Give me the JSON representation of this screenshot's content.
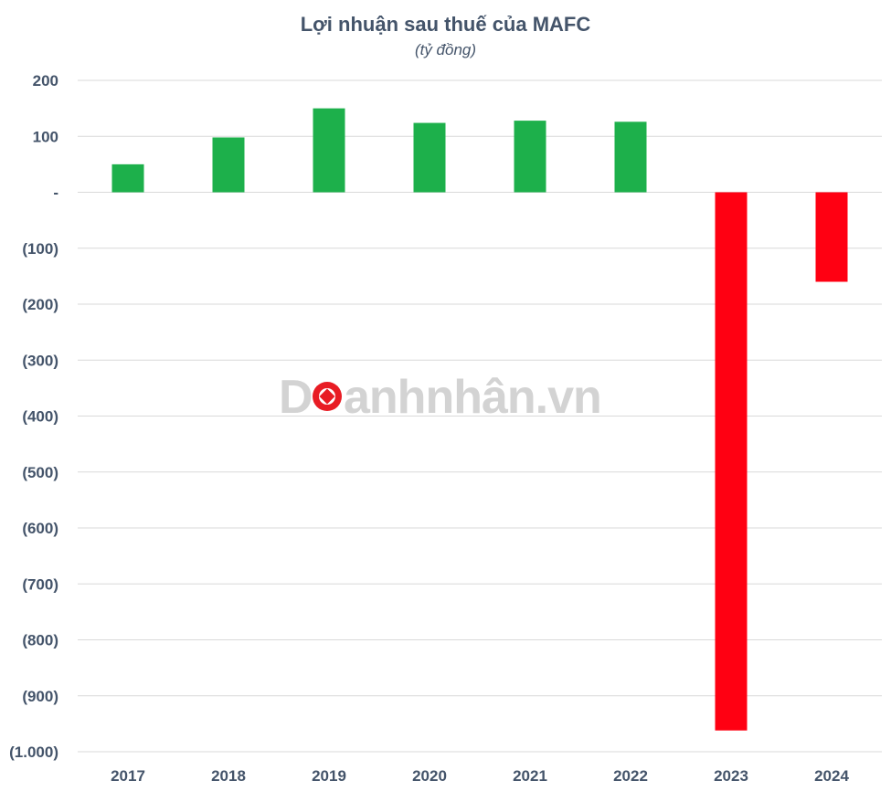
{
  "chart_data": {
    "type": "bar",
    "title": "Lợi nhuận sau thuế của MAFC",
    "subtitle": "(tỷ đồng)",
    "categories": [
      "2017",
      "2018",
      "2019",
      "2020",
      "2021",
      "2022",
      "2023",
      "2024"
    ],
    "values": [
      50,
      98,
      150,
      124,
      128,
      126,
      -962,
      -160
    ],
    "ylim": [
      -1000,
      200
    ],
    "yticks": [
      200,
      100,
      0,
      -100,
      -200,
      -300,
      -400,
      -500,
      -600,
      -700,
      -800,
      -900,
      -1000
    ],
    "ytick_labels": [
      "200",
      "100",
      "-",
      "(100)",
      "(200)",
      "(300)",
      "(400)",
      "(500)",
      "(600)",
      "(700)",
      "(800)",
      "(900)",
      "(1.000)"
    ],
    "grid": true,
    "positive_color": "#1db04b",
    "negative_color": "#ff0012"
  },
  "watermark": {
    "text_before": "D",
    "text_after": "anhnhân.vn",
    "accent_color": "#e81c24"
  }
}
